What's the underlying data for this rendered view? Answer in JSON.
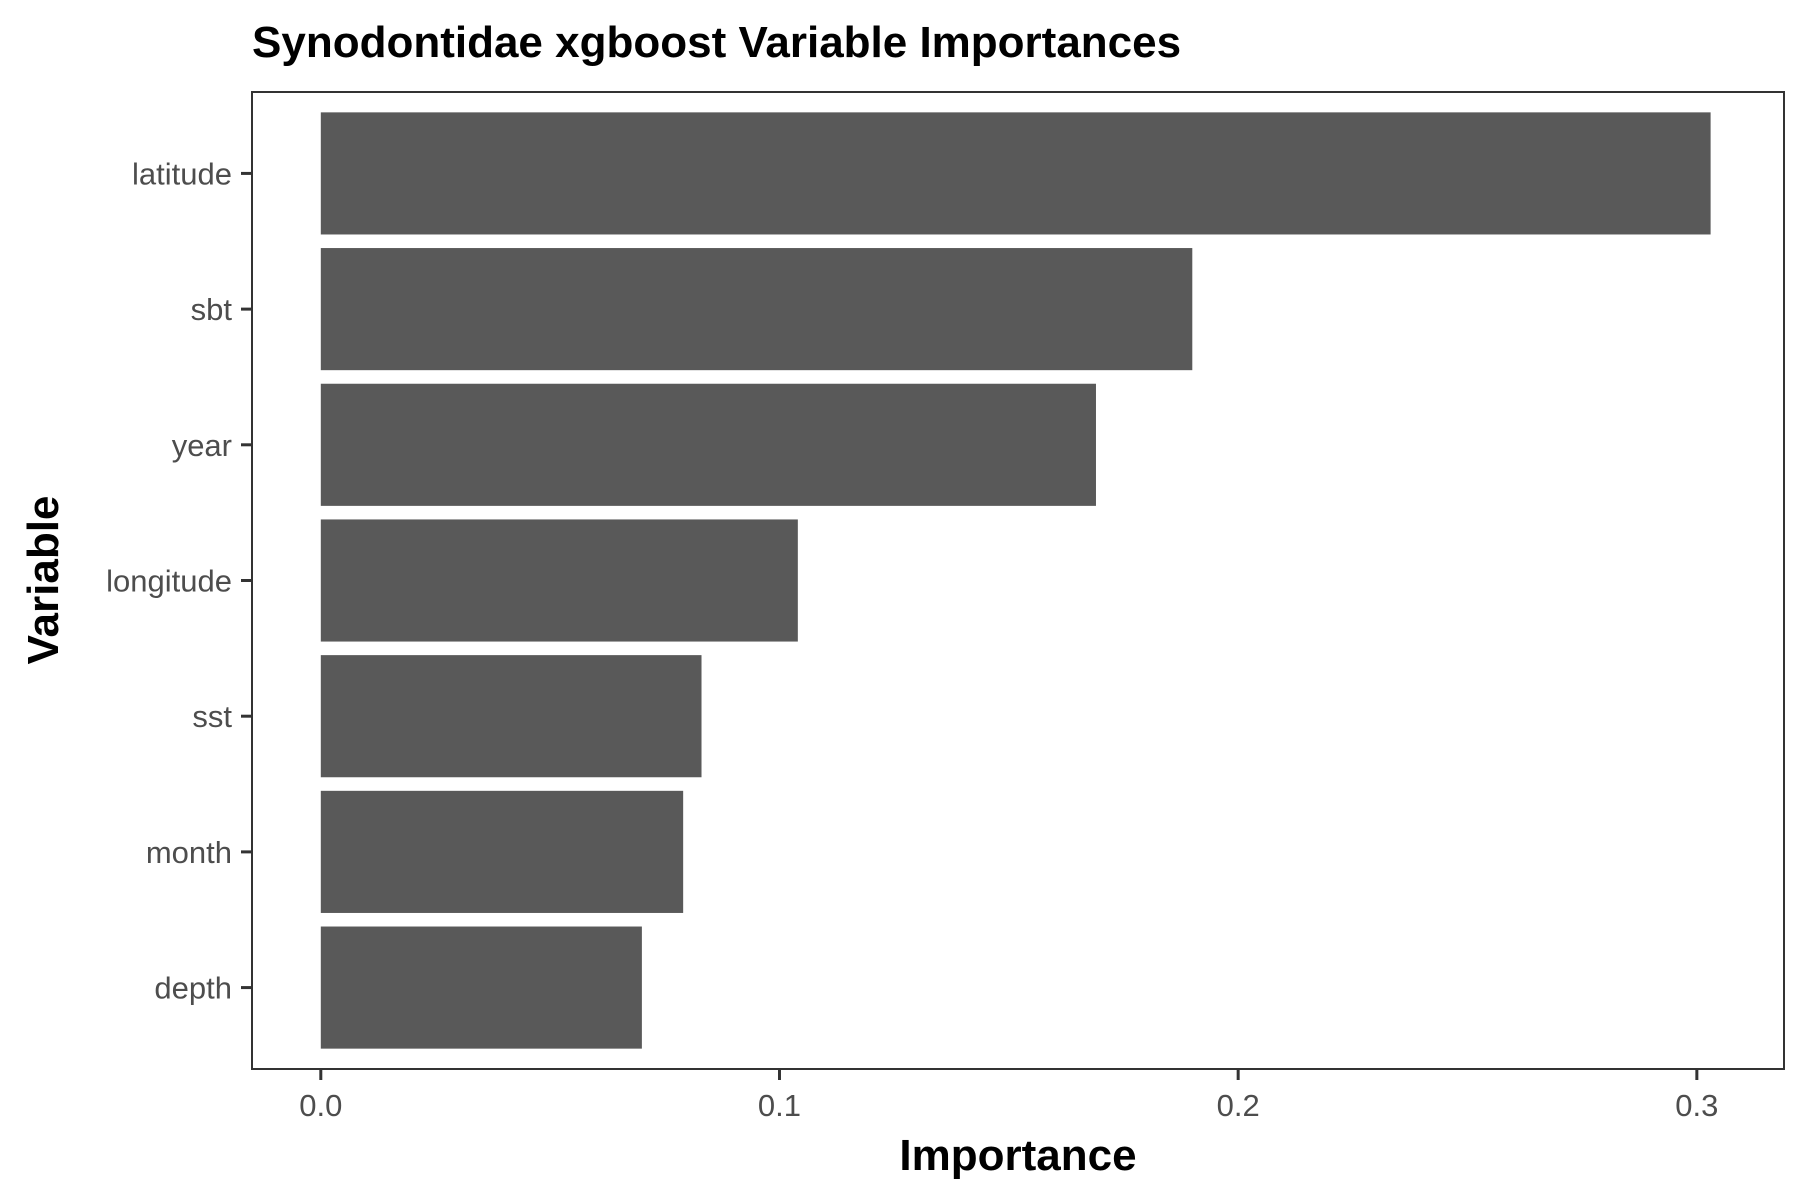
{
  "chart_data": {
    "type": "bar",
    "orientation": "horizontal",
    "title": "Synodontidae xgboost Variable Importances",
    "xlabel": "Importance",
    "ylabel": "Variable",
    "categories": [
      "latitude",
      "sbt",
      "year",
      "longitude",
      "sst",
      "month",
      "depth"
    ],
    "values": [
      0.303,
      0.19,
      0.169,
      0.104,
      0.083,
      0.079,
      0.07
    ],
    "xlim": [
      -0.015,
      0.319
    ],
    "xticks": [
      0,
      0.1,
      0.2,
      0.3
    ],
    "xtick_labels": [
      "0.0",
      "0.1",
      "0.2",
      "0.3"
    ],
    "grid": false,
    "bar_color": "#595959",
    "panel_border_color": "#333333"
  }
}
